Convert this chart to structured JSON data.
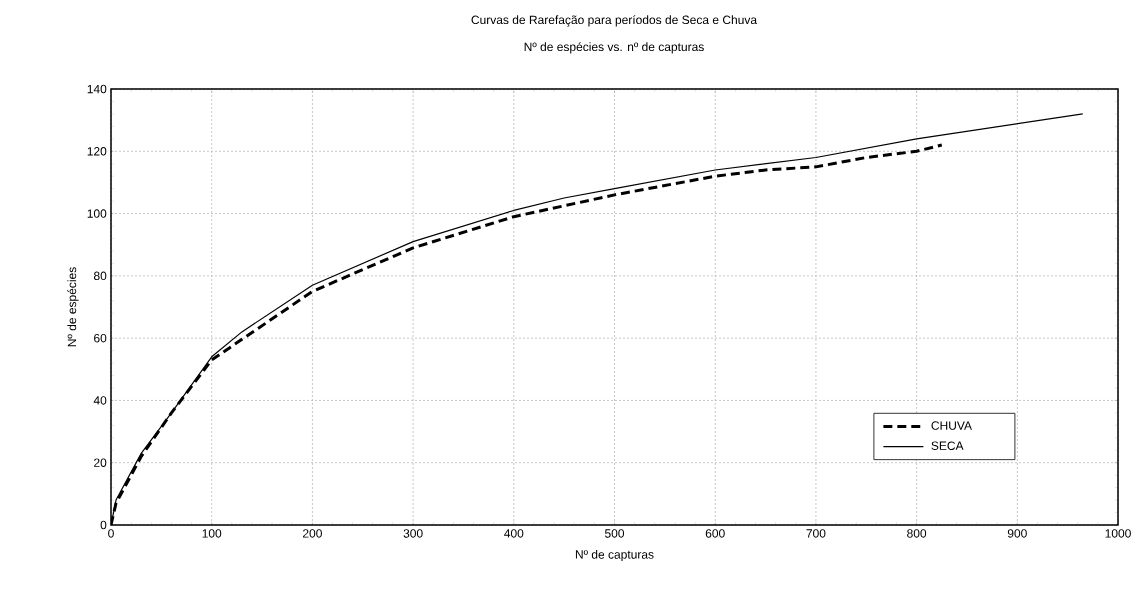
{
  "chart_data": {
    "type": "line",
    "title": "Curvas de Rarefação para períodos de Seca e Chuva",
    "subtitle": "Nº de espécies vs. nº de capturas",
    "xlabel": "Nº de capturas",
    "ylabel": "Nº de espécies",
    "xlim": [
      0,
      1000
    ],
    "xticks": [
      0,
      100,
      200,
      300,
      400,
      500,
      600,
      700,
      800,
      900,
      1000
    ],
    "ylim": [
      0,
      140
    ],
    "yticks": [
      0,
      20,
      40,
      60,
      80,
      100,
      120,
      140
    ],
    "grid": true,
    "legend": "bottom right",
    "marker": "none",
    "series": [
      {
        "name": "CHUVA",
        "color": "#000000",
        "line_style": "dashed",
        "x": [
          0,
          5,
          30,
          60,
          100,
          200,
          300,
          400,
          500,
          550,
          600,
          650,
          700,
          750,
          800,
          825
        ],
        "values": [
          0,
          7,
          22,
          36,
          53,
          75,
          89,
          99,
          106,
          109,
          112,
          114,
          115,
          118,
          120,
          122
        ]
      },
      {
        "name": "SECA",
        "color": "#000000",
        "line_style": "solid",
        "x": [
          0,
          5,
          30,
          60,
          100,
          130,
          200,
          300,
          400,
          450,
          500,
          600,
          700,
          800,
          965
        ],
        "values": [
          0,
          8,
          23,
          36,
          54,
          62,
          77,
          91,
          101,
          105,
          108,
          114,
          118,
          124,
          132
        ]
      }
    ]
  }
}
